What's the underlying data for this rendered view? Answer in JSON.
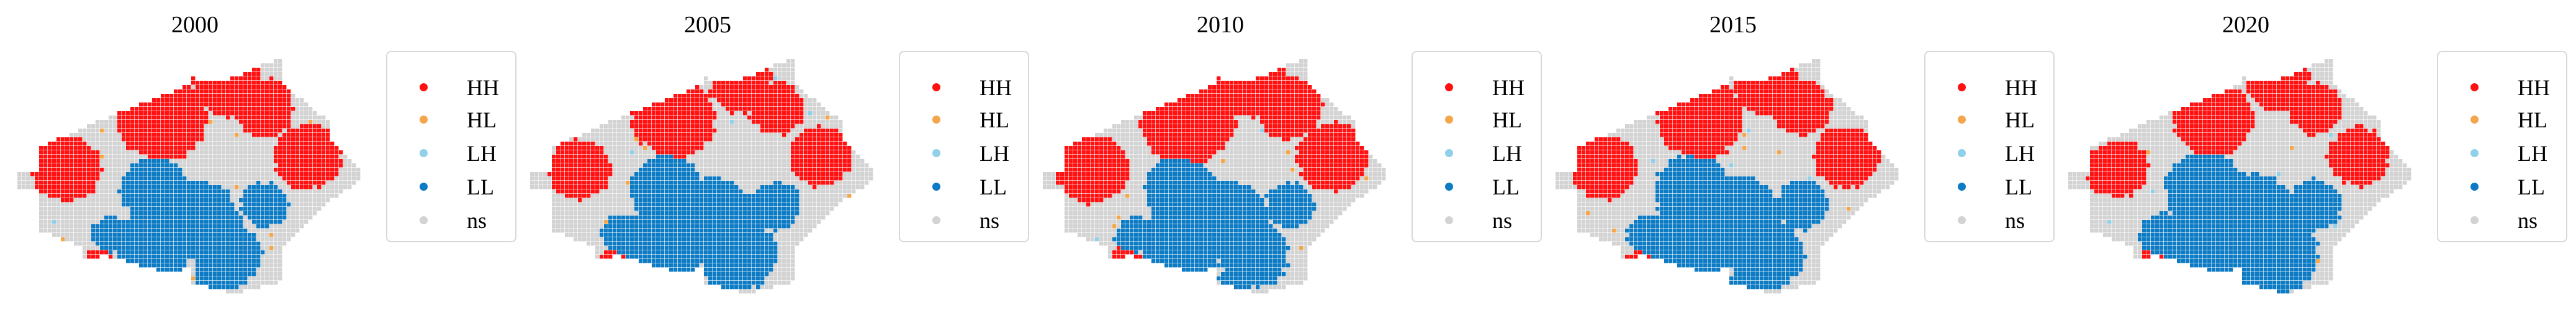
{
  "colors": {
    "HH": "#ff1111",
    "HL": "#f4a64a",
    "LH": "#8fd1e8",
    "LL": "#0d7bc4",
    "ns": "#d3d3d3"
  },
  "legend": [
    {
      "key": "HH",
      "label": "HH"
    },
    {
      "key": "HL",
      "label": "HL"
    },
    {
      "key": "LH",
      "label": "LH"
    },
    {
      "key": "LL",
      "label": "LL"
    },
    {
      "key": "ns",
      "label": "ns"
    }
  ],
  "panels": [
    {
      "year": "2000",
      "seed": 11,
      "hh": 1.0,
      "ll": 1.0
    },
    {
      "year": "2005",
      "seed": 23,
      "hh": 0.92,
      "ll": 1.08
    },
    {
      "year": "2010",
      "seed": 37,
      "hh": 1.06,
      "ll": 1.04
    },
    {
      "year": "2015",
      "seed": 53,
      "hh": 0.96,
      "ll": 1.1
    },
    {
      "year": "2020",
      "seed": 71,
      "hh": 0.9,
      "ll": 1.16
    }
  ]
}
